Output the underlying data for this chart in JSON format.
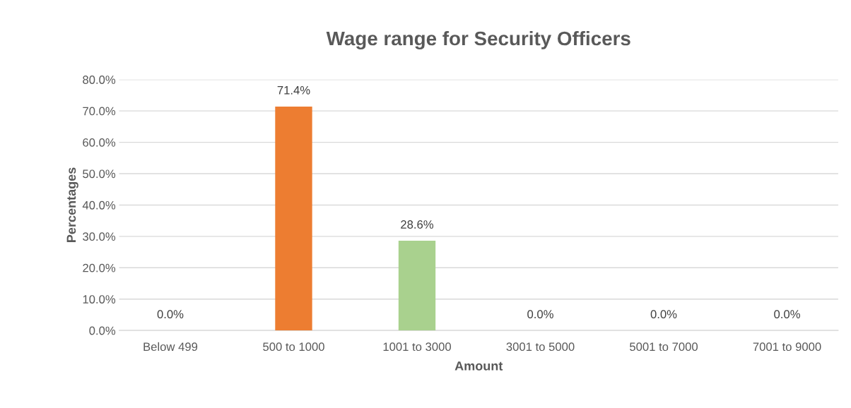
{
  "chart_data": {
    "type": "bar",
    "title": "Wage range for Security Officers",
    "xlabel": "Amount",
    "ylabel": "Percentages",
    "categories": [
      "Below 499",
      "500 to 1000",
      "1001 to 3000",
      "3001 to 5000",
      "5001 to 7000",
      "7001 to 9000"
    ],
    "values": [
      0,
      71.4,
      28.6,
      0,
      0,
      0
    ],
    "colors": [
      "#4472c4",
      "#ed7d31",
      "#a9d18e",
      "#ffc000",
      "#5b9bd5",
      "#70ad47"
    ],
    "value_labels": [
      "0.0%",
      "71.4%",
      "28.6%",
      "0.0%",
      "0.0%",
      "0.0%"
    ],
    "ylim": [
      0,
      80
    ],
    "yticks": [
      {
        "value": 0,
        "label": "0.0%"
      },
      {
        "value": 10,
        "label": "10.0%"
      },
      {
        "value": 20,
        "label": "20.0%"
      },
      {
        "value": 30,
        "label": "30.0%"
      },
      {
        "value": 40,
        "label": "40.0%"
      },
      {
        "value": 50,
        "label": "50.0%"
      },
      {
        "value": 60,
        "label": "60.0%"
      },
      {
        "value": 70,
        "label": "70.0%"
      },
      {
        "value": 80,
        "label": "80.0%"
      }
    ],
    "grid": "y"
  }
}
